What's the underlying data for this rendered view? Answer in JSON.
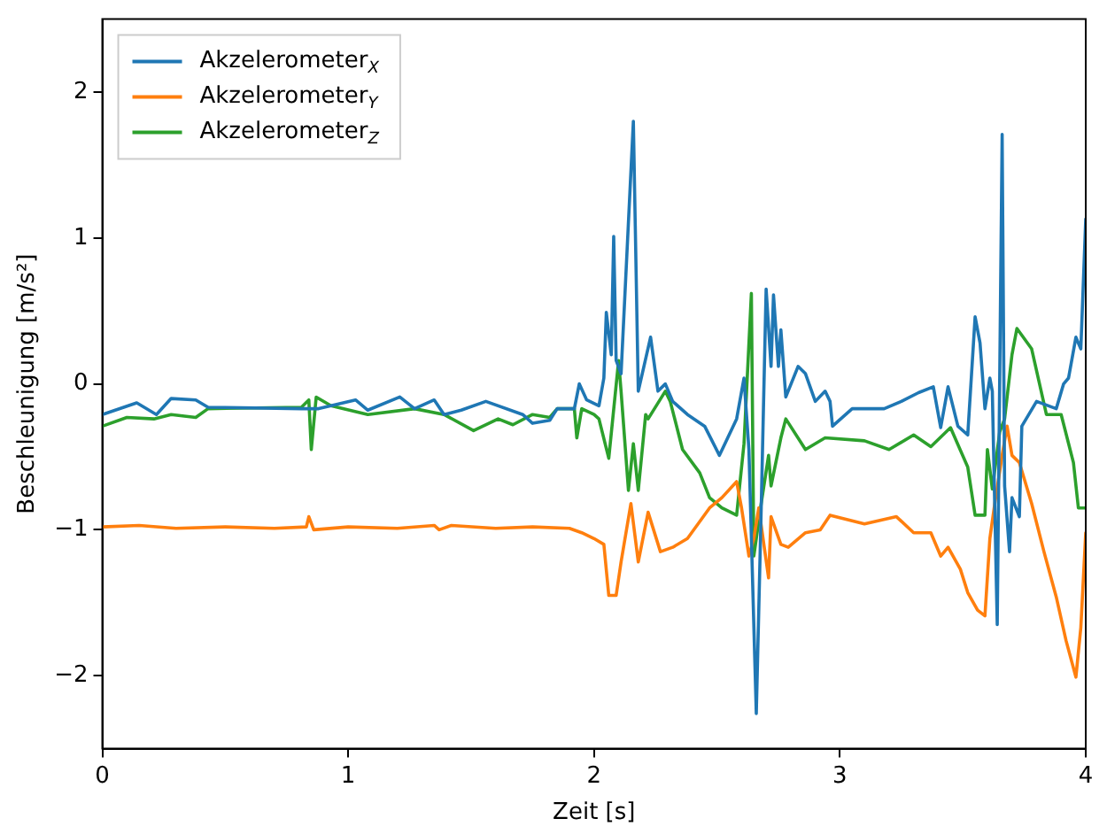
{
  "chart_data": {
    "type": "line",
    "xlabel": "Zeit [s]",
    "ylabel": "Beschleunigung [m/s²]",
    "xlim": [
      0,
      4
    ],
    "xticks": [
      0,
      1,
      2,
      3,
      4
    ],
    "ylim": [
      -2.5,
      2.5
    ],
    "yticks": [
      -2,
      -1,
      0,
      1,
      2
    ],
    "grid": false,
    "legend": "top left",
    "marker": "none",
    "line_style": "solid",
    "series": [
      {
        "name": "Akzelerometer$_{X}$",
        "color": "#1f77b4",
        "x": [
          0,
          0.14,
          0.22,
          0.28,
          0.38,
          0.43,
          0.81,
          0.88,
          1.03,
          1.08,
          1.21,
          1.27,
          1.35,
          1.39,
          1.46,
          1.56,
          1.71,
          1.75,
          1.82,
          1.85,
          1.92,
          1.94,
          1.97,
          2.02,
          2.04,
          2.05,
          2.07,
          2.08,
          2.09,
          2.11,
          2.16,
          2.18,
          2.23,
          2.26,
          2.29,
          2.32,
          2.38,
          2.45,
          2.51,
          2.58,
          2.61,
          2.63,
          2.66,
          2.68,
          2.7,
          2.72,
          2.73,
          2.75,
          2.76,
          2.78,
          2.83,
          2.86,
          2.9,
          2.94,
          2.96,
          2.97,
          3.05,
          3.18,
          3.25,
          3.32,
          3.38,
          3.41,
          3.44,
          3.48,
          3.52,
          3.55,
          3.57,
          3.59,
          3.61,
          3.62,
          3.64,
          3.66,
          3.67,
          3.69,
          3.7,
          3.73,
          3.74,
          3.8,
          3.88,
          3.91,
          3.93,
          3.96,
          3.98,
          4.0
        ],
        "values": [
          -0.21,
          -0.13,
          -0.21,
          -0.1,
          -0.11,
          -0.16,
          -0.17,
          -0.17,
          -0.11,
          -0.18,
          -0.09,
          -0.17,
          -0.11,
          -0.21,
          -0.18,
          -0.12,
          -0.21,
          -0.27,
          -0.25,
          -0.17,
          -0.17,
          0,
          -0.11,
          -0.15,
          0.04,
          0.49,
          0.2,
          1.01,
          0.16,
          0.07,
          1.8,
          -0.05,
          0.32,
          -0.05,
          0,
          -0.12,
          -0.21,
          -0.29,
          -0.49,
          -0.24,
          0.04,
          -0.45,
          -2.26,
          -0.85,
          0.65,
          0.12,
          0.61,
          0.12,
          0.37,
          -0.09,
          0.12,
          0.07,
          -0.12,
          -0.05,
          -0.12,
          -0.29,
          -0.17,
          -0.17,
          -0.12,
          -0.06,
          -0.02,
          -0.3,
          -0.02,
          -0.29,
          -0.35,
          0.46,
          0.28,
          -0.17,
          0.04,
          -0.05,
          -1.65,
          1.71,
          -0.7,
          -1.15,
          -0.78,
          -0.91,
          -0.29,
          -0.12,
          -0.17,
          0,
          0.04,
          0.32,
          0.24,
          1.13
        ]
      },
      {
        "name": "Akzelerometer$_{Y}$",
        "color": "#ff7f0e",
        "x": [
          0,
          0.15,
          0.3,
          0.5,
          0.7,
          0.83,
          0.84,
          0.86,
          1.0,
          1.2,
          1.35,
          1.37,
          1.42,
          1.6,
          1.75,
          1.9,
          1.95,
          2.0,
          2.04,
          2.06,
          2.09,
          2.11,
          2.15,
          2.18,
          2.22,
          2.27,
          2.32,
          2.38,
          2.47,
          2.52,
          2.58,
          2.6,
          2.63,
          2.65,
          2.67,
          2.71,
          2.72,
          2.76,
          2.79,
          2.86,
          2.92,
          2.96,
          3.1,
          3.23,
          3.3,
          3.37,
          3.41,
          3.44,
          3.49,
          3.52,
          3.56,
          3.59,
          3.61,
          3.63,
          3.66,
          3.68,
          3.7,
          3.73,
          3.78,
          3.83,
          3.88,
          3.92,
          3.96,
          3.98,
          4.0
        ],
        "values": [
          -0.98,
          -0.97,
          -0.99,
          -0.98,
          -0.99,
          -0.98,
          -0.91,
          -1.0,
          -0.98,
          -0.99,
          -0.97,
          -1.0,
          -0.97,
          -0.99,
          -0.98,
          -0.99,
          -1.02,
          -1.06,
          -1.1,
          -1.45,
          -1.45,
          -1.22,
          -0.82,
          -1.22,
          -0.88,
          -1.15,
          -1.12,
          -1.06,
          -0.85,
          -0.78,
          -0.67,
          -0.85,
          -1.18,
          -1.06,
          -0.85,
          -1.33,
          -0.91,
          -1.1,
          -1.12,
          -1.02,
          -1.0,
          -0.9,
          -0.96,
          -0.91,
          -1.02,
          -1.02,
          -1.18,
          -1.12,
          -1.27,
          -1.43,
          -1.55,
          -1.59,
          -1.06,
          -0.82,
          -0.49,
          -0.29,
          -0.49,
          -0.54,
          -0.82,
          -1.15,
          -1.46,
          -1.76,
          -2.01,
          -1.67,
          -1.02
        ]
      },
      {
        "name": "Akzelerometer$_{Z}$",
        "color": "#2ca02c",
        "x": [
          0,
          0.1,
          0.21,
          0.28,
          0.38,
          0.43,
          0.81,
          0.84,
          0.85,
          0.87,
          0.93,
          1.08,
          1.27,
          1.39,
          1.51,
          1.61,
          1.67,
          1.75,
          1.82,
          1.85,
          1.92,
          1.93,
          1.95,
          2.0,
          2.02,
          2.06,
          2.1,
          2.11,
          2.14,
          2.16,
          2.18,
          2.21,
          2.22,
          2.29,
          2.31,
          2.36,
          2.43,
          2.47,
          2.52,
          2.58,
          2.61,
          2.64,
          2.65,
          2.68,
          2.71,
          2.72,
          2.76,
          2.78,
          2.86,
          2.94,
          3.1,
          3.2,
          3.3,
          3.37,
          3.45,
          3.52,
          3.55,
          3.59,
          3.6,
          3.62,
          3.65,
          3.67,
          3.7,
          3.72,
          3.78,
          3.84,
          3.9,
          3.95,
          3.97,
          4.0
        ],
        "values": [
          -0.29,
          -0.23,
          -0.24,
          -0.21,
          -0.23,
          -0.17,
          -0.16,
          -0.11,
          -0.45,
          -0.09,
          -0.15,
          -0.21,
          -0.17,
          -0.21,
          -0.32,
          -0.24,
          -0.28,
          -0.21,
          -0.23,
          -0.17,
          -0.17,
          -0.37,
          -0.17,
          -0.21,
          -0.24,
          -0.51,
          0.16,
          -0.05,
          -0.73,
          -0.41,
          -0.73,
          -0.21,
          -0.24,
          -0.05,
          -0.12,
          -0.45,
          -0.61,
          -0.78,
          -0.85,
          -0.9,
          -0.41,
          0.62,
          -1.18,
          -0.82,
          -0.49,
          -0.7,
          -0.37,
          -0.24,
          -0.45,
          -0.37,
          -0.39,
          -0.45,
          -0.35,
          -0.43,
          -0.3,
          -0.57,
          -0.9,
          -0.9,
          -0.45,
          -0.72,
          -0.33,
          -0.24,
          0.2,
          0.38,
          0.24,
          -0.21,
          -0.21,
          -0.54,
          -0.85,
          -0.85
        ]
      }
    ]
  }
}
